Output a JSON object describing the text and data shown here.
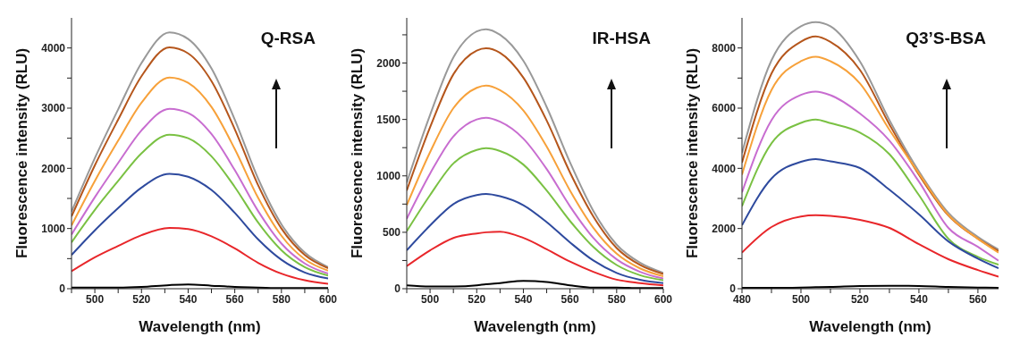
{
  "chart_data": [
    {
      "type": "line",
      "title": "Q-RSA",
      "xlabel": "Wavelength (nm)",
      "ylabel": "Fluorescence intensity (RLU)",
      "x": [
        490,
        500,
        510,
        520,
        532,
        540,
        550,
        560,
        570,
        580,
        590,
        600
      ],
      "series": [
        {
          "color": "#999999",
          "values": [
            1280,
            2170,
            2980,
            3750,
            4260,
            4150,
            3660,
            2810,
            1830,
            1070,
            600,
            360
          ]
        },
        {
          "color": "#b5561c",
          "values": [
            1200,
            2050,
            2810,
            3530,
            4010,
            3910,
            3450,
            2650,
            1720,
            1000,
            560,
            340
          ]
        },
        {
          "color": "#f7a13a",
          "values": [
            1050,
            1790,
            2460,
            3090,
            3510,
            3420,
            3020,
            2320,
            1510,
            880,
            490,
            300
          ]
        },
        {
          "color": "#c86dd0",
          "values": [
            900,
            1520,
            2090,
            2630,
            2990,
            2920,
            2570,
            1970,
            1290,
            750,
            420,
            250
          ]
        },
        {
          "color": "#7ac143",
          "values": [
            770,
            1310,
            1790,
            2250,
            2560,
            2500,
            2200,
            1690,
            1100,
            640,
            360,
            220
          ]
        },
        {
          "color": "#2e4a9e",
          "values": [
            560,
            970,
            1340,
            1680,
            1910,
            1860,
            1640,
            1260,
            820,
            480,
            270,
            170
          ]
        },
        {
          "color": "#e8262a",
          "values": [
            290,
            520,
            710,
            890,
            1010,
            990,
            870,
            670,
            430,
            250,
            140,
            80
          ]
        },
        {
          "color": "#000000",
          "values": [
            20,
            20,
            20,
            30,
            60,
            70,
            50,
            30,
            20,
            10,
            10,
            10
          ]
        }
      ],
      "xlim": [
        490,
        600
      ],
      "ylim": [
        0,
        4500
      ],
      "xticks": [
        {
          "value": 490,
          "label": null
        },
        500,
        {
          "value": 510,
          "label": null
        },
        520,
        {
          "value": 530,
          "label": null
        },
        540,
        {
          "value": 550,
          "label": null
        },
        560,
        {
          "value": 570,
          "label": null
        },
        580,
        {
          "value": 590,
          "label": null
        },
        600
      ],
      "yticks": [
        0,
        {
          "value": 500,
          "label": null
        },
        1000,
        {
          "value": 1500,
          "label": null
        },
        2000,
        {
          "value": 2500,
          "label": null
        },
        3000,
        {
          "value": 3500,
          "label": null
        },
        4000
      ],
      "grid": false
    },
    {
      "type": "line",
      "title": "IR-HSA",
      "xlabel": "Wavelength (nm)",
      "ylabel": "Fluorescence intensity (RLU)",
      "x": [
        490,
        500,
        510,
        520,
        524,
        530,
        540,
        550,
        560,
        570,
        580,
        590,
        600
      ],
      "series": [
        {
          "color": "#999999",
          "values": [
            940,
            1540,
            2050,
            2280,
            2300,
            2250,
            2020,
            1610,
            1120,
            690,
            390,
            230,
            140
          ]
        },
        {
          "color": "#b5561c",
          "values": [
            870,
            1430,
            1900,
            2110,
            2130,
            2090,
            1870,
            1490,
            1030,
            640,
            360,
            210,
            130
          ]
        },
        {
          "color": "#f7a13a",
          "values": [
            740,
            1210,
            1600,
            1780,
            1800,
            1760,
            1580,
            1260,
            870,
            540,
            310,
            180,
            110
          ]
        },
        {
          "color": "#c86dd0",
          "values": [
            620,
            1020,
            1350,
            1500,
            1515,
            1480,
            1330,
            1060,
            730,
            450,
            260,
            150,
            90
          ]
        },
        {
          "color": "#7ac143",
          "values": [
            510,
            830,
            1110,
            1230,
            1245,
            1220,
            1100,
            870,
            600,
            370,
            210,
            120,
            75
          ]
        },
        {
          "color": "#2e4a9e",
          "values": [
            340,
            560,
            750,
            830,
            840,
            820,
            740,
            590,
            410,
            250,
            140,
            80,
            50
          ]
        },
        {
          "color": "#e8262a",
          "values": [
            200,
            340,
            450,
            490,
            500,
            505,
            450,
            350,
            240,
            150,
            80,
            50,
            30
          ]
        },
        {
          "color": "#000000",
          "values": [
            30,
            20,
            20,
            30,
            40,
            50,
            70,
            60,
            30,
            10,
            10,
            5,
            5
          ]
        }
      ],
      "xlim": [
        490,
        600
      ],
      "ylim": [
        0,
        2400
      ],
      "xticks": [
        {
          "value": 490,
          "label": null
        },
        500,
        {
          "value": 510,
          "label": null
        },
        520,
        {
          "value": 530,
          "label": null
        },
        540,
        {
          "value": 550,
          "label": null
        },
        560,
        {
          "value": 570,
          "label": null
        },
        580,
        {
          "value": 590,
          "label": null
        },
        600
      ],
      "yticks": [
        0,
        {
          "value": 250,
          "label": null
        },
        500,
        {
          "value": 750,
          "label": null
        },
        1000,
        {
          "value": 1250,
          "label": null
        },
        1500,
        {
          "value": 1750,
          "label": null
        },
        2000,
        {
          "value": 2250,
          "label": null
        }
      ],
      "grid": false
    },
    {
      "type": "line",
      "title": "Q3’S-BSA",
      "xlabel": "Wavelength (nm)",
      "ylabel": "Fluorescence intensity (RLU)",
      "x": [
        480,
        490,
        500,
        505,
        510,
        520,
        530,
        540,
        550,
        560,
        567
      ],
      "series": [
        {
          "color": "#999999",
          "values": [
            4510,
            7590,
            8720,
            8860,
            8720,
            7550,
            5600,
            3900,
            2520,
            1720,
            1300
          ]
        },
        {
          "color": "#b5561c",
          "values": [
            4190,
            7150,
            8210,
            8380,
            8200,
            7270,
            5460,
            3790,
            2430,
            1660,
            1250
          ]
        },
        {
          "color": "#f7a13a",
          "values": [
            3790,
            6600,
            7560,
            7710,
            7560,
            6820,
            5280,
            3830,
            2450,
            1660,
            1200
          ]
        },
        {
          "color": "#c86dd0",
          "values": [
            3200,
            5600,
            6440,
            6550,
            6430,
            5820,
            4920,
            3560,
            2020,
            1390,
            930
          ]
        },
        {
          "color": "#7ac143",
          "values": [
            2740,
            4830,
            5510,
            5620,
            5500,
            5190,
            4470,
            3110,
            1660,
            1060,
            800
          ]
        },
        {
          "color": "#2e4a9e",
          "values": [
            2110,
            3660,
            4220,
            4310,
            4230,
            4010,
            3290,
            2470,
            1570,
            1000,
            680
          ]
        },
        {
          "color": "#e8262a",
          "values": [
            1200,
            2050,
            2400,
            2440,
            2420,
            2290,
            2020,
            1480,
            980,
            620,
            400
          ]
        },
        {
          "color": "#000000",
          "values": [
            30,
            30,
            40,
            50,
            60,
            90,
            100,
            90,
            60,
            40,
            30
          ]
        }
      ],
      "xlim": [
        480,
        567
      ],
      "ylim": [
        0,
        9000
      ],
      "xticks": [
        480,
        {
          "value": 490,
          "label": null
        },
        500,
        {
          "value": 510,
          "label": null
        },
        520,
        {
          "value": 530,
          "label": null
        },
        540,
        {
          "value": 550,
          "label": null
        },
        560
      ],
      "yticks": [
        0,
        {
          "value": 1000,
          "label": null
        },
        2000,
        {
          "value": 3000,
          "label": null
        },
        4000,
        {
          "value": 5000,
          "label": null
        },
        6000,
        {
          "value": 7000,
          "label": null
        },
        8000
      ],
      "grid": false
    }
  ]
}
